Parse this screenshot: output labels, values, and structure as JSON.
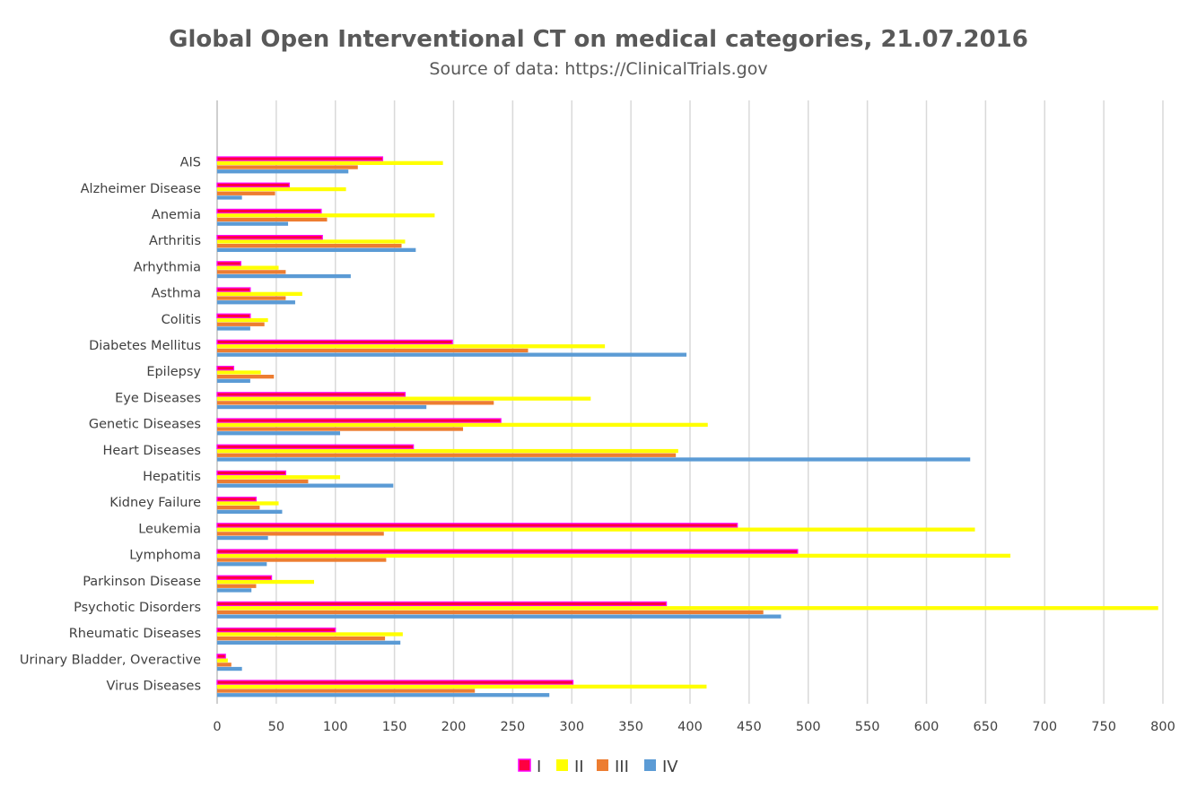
{
  "chart_data": {
    "type": "bar",
    "orientation": "horizontal",
    "title": "Global Open Interventional CT on medical categories, 21.07.2016",
    "subtitle": "Source of data: https://ClinicalTrials.gov",
    "xlabel": "",
    "ylabel": "",
    "xlim": [
      0,
      800
    ],
    "xticks": [
      0,
      50,
      100,
      150,
      200,
      250,
      300,
      350,
      400,
      450,
      500,
      550,
      600,
      650,
      700,
      750,
      800
    ],
    "grid": "vertical",
    "legend_position": "bottom",
    "categories": [
      "AIS",
      "Alzheimer Disease",
      "Anemia",
      "Arthritis",
      "Arhythmia",
      "Asthma",
      "Colitis",
      "Diabetes Mellitus",
      "Epilepsy",
      "Eye Diseases",
      "Genetic Diseases",
      "Heart Diseases",
      "Hepatitis",
      "Kidney Failure",
      "Leukemia",
      "Lymphoma",
      "Parkinson Disease",
      "Psychotic Disorders",
      "Rheumatic Diseases",
      "Urinary Bladder, Overactive",
      "Virus Diseases"
    ],
    "series": [
      {
        "name": "I",
        "color": "#ff0040",
        "border": "#ff00ff",
        "values": [
          140,
          61,
          88,
          89,
          20,
          28,
          28,
          199,
          14,
          159,
          240,
          166,
          58,
          33,
          440,
          491,
          46,
          380,
          100,
          7,
          301
        ]
      },
      {
        "name": "II",
        "color": "#ffff00",
        "values": [
          191,
          109,
          184,
          159,
          52,
          72,
          43,
          328,
          37,
          316,
          415,
          390,
          104,
          52,
          641,
          671,
          82,
          796,
          157,
          9,
          414
        ]
      },
      {
        "name": "III",
        "color": "#ed7d31",
        "values": [
          119,
          49,
          93,
          156,
          58,
          58,
          40,
          263,
          48,
          234,
          208,
          388,
          77,
          36,
          141,
          143,
          33,
          462,
          142,
          12,
          218
        ]
      },
      {
        "name": "IV",
        "color": "#5b9bd5",
        "values": [
          111,
          21,
          60,
          168,
          113,
          66,
          28,
          397,
          28,
          177,
          104,
          637,
          149,
          55,
          43,
          42,
          29,
          477,
          155,
          21,
          281
        ]
      }
    ]
  }
}
